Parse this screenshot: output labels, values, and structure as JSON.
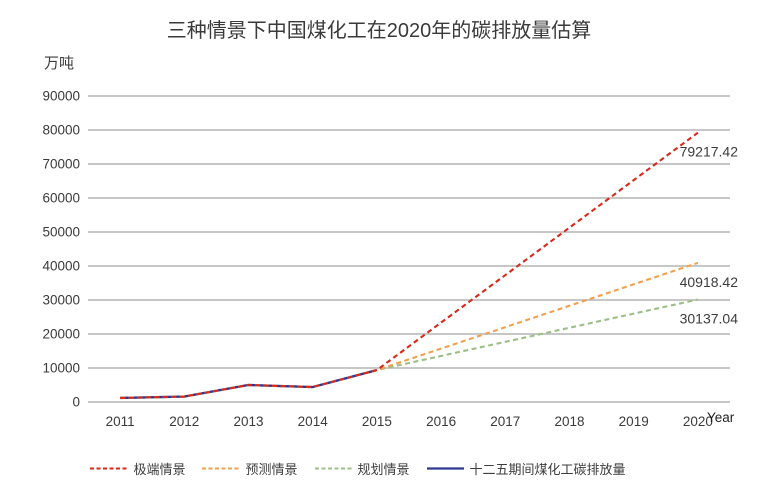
{
  "title": "三种情景下中国煤化工在2020年的碳排放量估算",
  "y_axis_unit": "万吨",
  "x_axis_title": "Year",
  "chart_data": {
    "type": "line",
    "title": "三种情景下中国煤化工在2020年的碳排放量估算",
    "ylabel": "万吨",
    "xlabel": "Year",
    "ylim": [
      0,
      90000
    ],
    "yticks": [
      0,
      10000,
      20000,
      30000,
      40000,
      50000,
      60000,
      70000,
      80000,
      90000
    ],
    "x": [
      2011,
      2012,
      2013,
      2014,
      2015,
      2016,
      2017,
      2018,
      2019,
      2020
    ],
    "grid": true,
    "legend_position": "bottom",
    "gridline_color": "#bfbfbf",
    "series": [
      {
        "name": "极端情景",
        "color": "#d9271b",
        "style": "dashed",
        "points": [
          [
            2011,
            1200
          ],
          [
            2012,
            1600
          ],
          [
            2013,
            5000
          ],
          [
            2014,
            4400
          ],
          [
            2015,
            9400
          ],
          [
            2020,
            79217.42
          ]
        ],
        "end_label": "79217.42"
      },
      {
        "name": "预测情景",
        "color": "#f2a04e",
        "style": "dashed",
        "points": [
          [
            2011,
            1200
          ],
          [
            2012,
            1600
          ],
          [
            2013,
            5000
          ],
          [
            2014,
            4400
          ],
          [
            2015,
            9400
          ],
          [
            2020,
            40918.42
          ]
        ],
        "end_label": "40918.42"
      },
      {
        "name": "规划情景",
        "color": "#9cbf87",
        "style": "dashed",
        "points": [
          [
            2011,
            1200
          ],
          [
            2012,
            1600
          ],
          [
            2013,
            5000
          ],
          [
            2014,
            4400
          ],
          [
            2015,
            9400
          ],
          [
            2020,
            30137.04
          ]
        ],
        "end_label": "30137.04"
      },
      {
        "name": "十二五期间煤化工碳排放量",
        "color": "#2b3a90",
        "style": "solid",
        "points": [
          [
            2011,
            1200
          ],
          [
            2012,
            1600
          ],
          [
            2013,
            5000
          ],
          [
            2014,
            4400
          ],
          [
            2015,
            9400
          ]
        ]
      }
    ]
  }
}
